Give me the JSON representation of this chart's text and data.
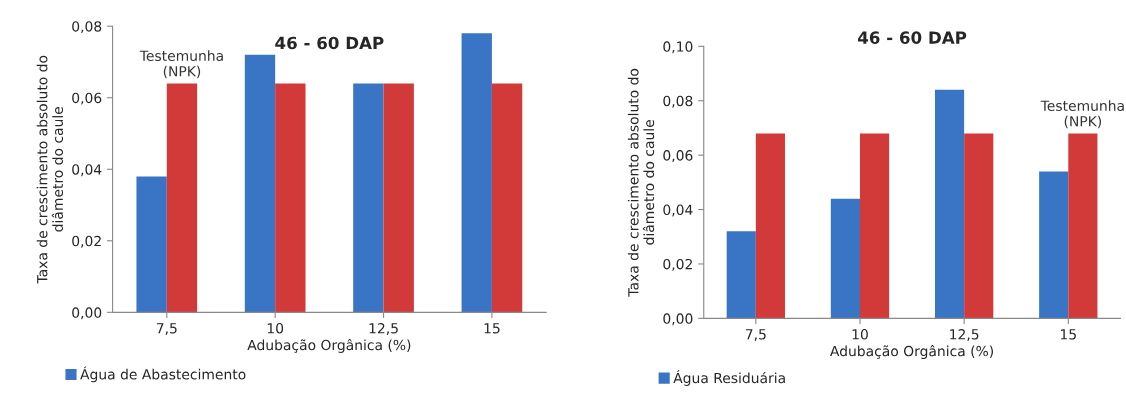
{
  "chart_data": [
    {
      "type": "bar",
      "title": "46 - 60 DAP",
      "xlabel": "Adubação Orgânica (%)",
      "ylabel": "Taxa de crescimento absoluto do\ndiâmetro do caule",
      "categories": [
        "7,5",
        "10",
        "12,5",
        "15"
      ],
      "series": [
        {
          "name": "Água de Abastecimento",
          "color": "#3a74c4",
          "values": [
            0.038,
            0.072,
            0.064,
            0.078
          ]
        },
        {
          "name": "Testemunha\n(NPK)",
          "color": "#d23a3a",
          "values": [
            0.064,
            0.064,
            0.064,
            0.064
          ]
        }
      ],
      "ylim": [
        0,
        0.08
      ],
      "yticks": [
        {
          "value": 0,
          "label": "0,00"
        },
        {
          "value": 0.02,
          "label": "0,02"
        },
        {
          "value": 0.04,
          "label": "0,04"
        },
        {
          "value": 0.06,
          "label": "0,06"
        },
        {
          "value": 0.08,
          "label": "0,08"
        }
      ],
      "grid": false,
      "legend": "bottom left"
    },
    {
      "type": "bar",
      "title": "46 - 60 DAP",
      "xlabel": "Adubação Orgânica (%)",
      "ylabel": "Taxa de crescimento absoluto do\ndiâmetro do caule",
      "categories": [
        "7,5",
        "10",
        "12,5",
        "15"
      ],
      "series": [
        {
          "name": "Água Residuária",
          "color": "#3a74c4",
          "values": [
            0.032,
            0.044,
            0.084,
            0.054
          ]
        },
        {
          "name": "Testemunha\n(NPK)",
          "color": "#d23a3a",
          "values": [
            0.068,
            0.068,
            0.068,
            0.068
          ]
        }
      ],
      "ylim": [
        0,
        0.1
      ],
      "yticks": [
        {
          "value": 0,
          "label": "0,00"
        },
        {
          "value": 0.02,
          "label": "0,02"
        },
        {
          "value": 0.04,
          "label": "0,04"
        },
        {
          "value": 0.06,
          "label": "0,06"
        },
        {
          "value": 0.08,
          "label": "0,08"
        },
        {
          "value": 0.1,
          "label": "0,10"
        }
      ],
      "grid": false,
      "legend": "bottom left"
    }
  ]
}
